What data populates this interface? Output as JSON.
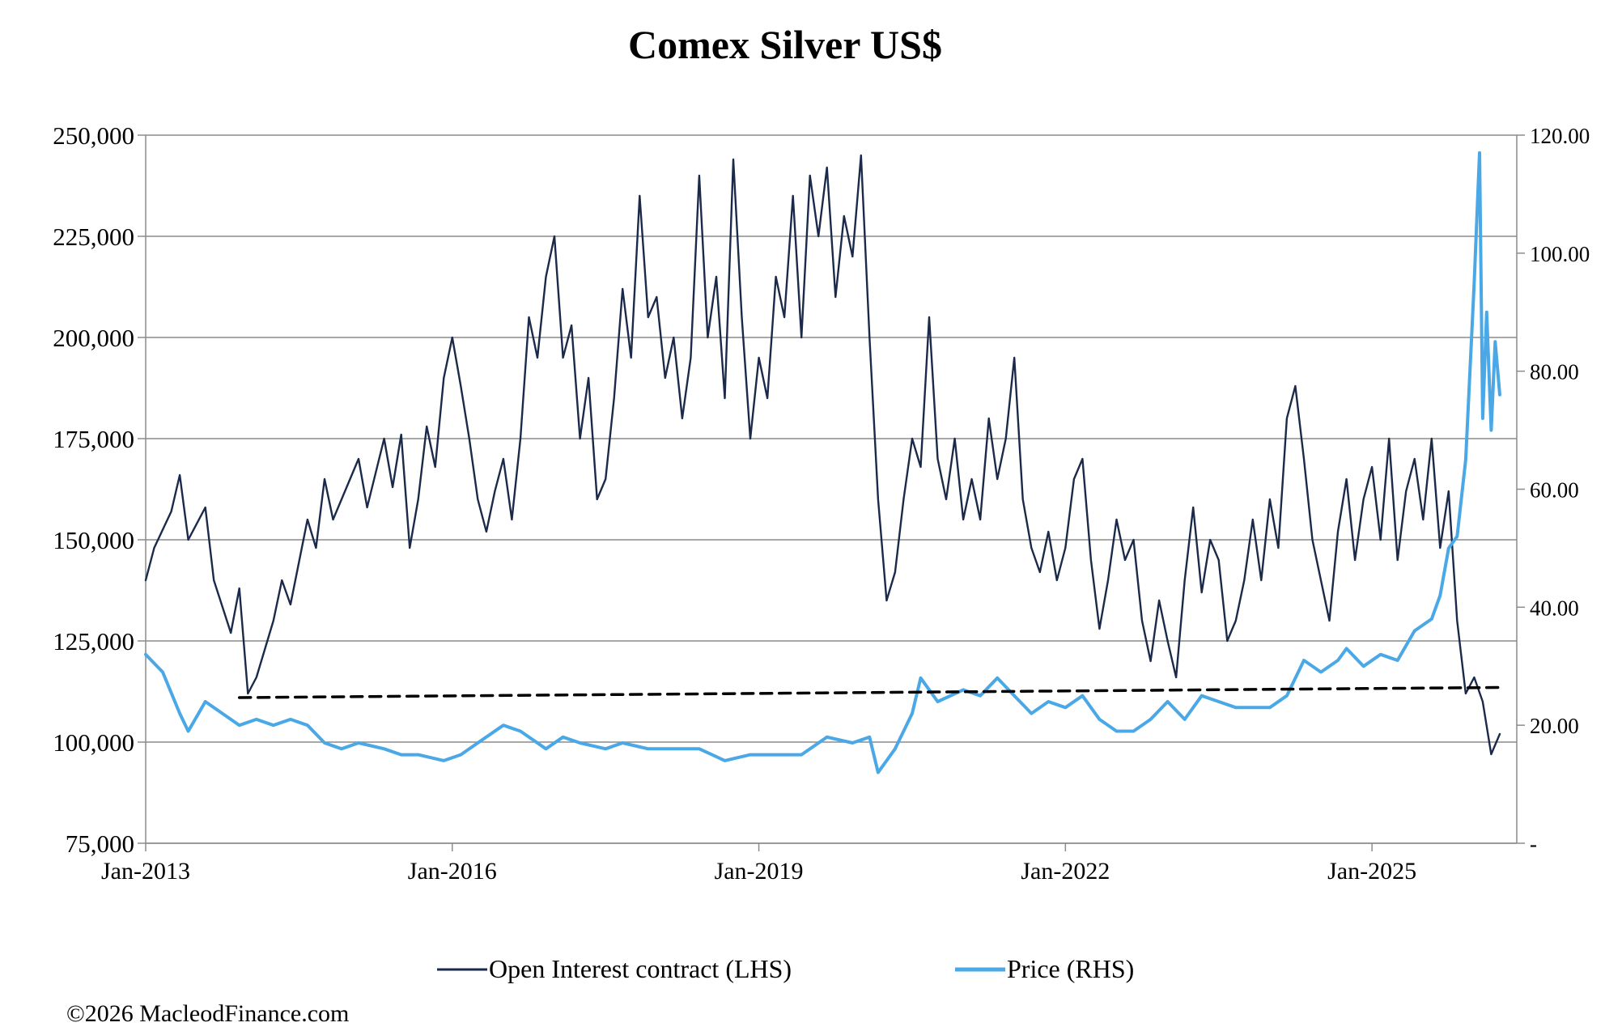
{
  "chart_data": {
    "type": "line",
    "title": "Comex Silver US$",
    "copyright": "©2026 MacleodFinance.com",
    "x_range": [
      "2013-01",
      "2026-06"
    ],
    "x_tick_labels": [
      "Jan-2013",
      "Jan-2016",
      "Jan-2019",
      "Jan-2022",
      "Jan-2025"
    ],
    "x_tick_dates": [
      "2013-01",
      "2016-01",
      "2019-01",
      "2022-01",
      "2025-01"
    ],
    "y_left": {
      "range": [
        75000,
        250000
      ],
      "ticks": [
        75000,
        100000,
        125000,
        150000,
        175000,
        200000,
        225000,
        250000
      ],
      "tick_labels": [
        "75,000",
        "100,000",
        "125,000",
        "150,000",
        "175,000",
        "200,000",
        "225,000",
        "250,000"
      ]
    },
    "y_right": {
      "range": [
        0,
        120
      ],
      "ticks": [
        0,
        20,
        40,
        60,
        80,
        100,
        120
      ],
      "tick_labels": [
        "-",
        "20.00",
        "40.00",
        "60.00",
        "80.00",
        "100.00",
        "120.00"
      ]
    },
    "grid": true,
    "legend_position": "bottom",
    "series": [
      {
        "name": "Open Interest contract (LHS)",
        "axis": "left",
        "color": "#1b2a4a",
        "points": [
          [
            "2013-01",
            140000
          ],
          [
            "2013-02",
            148000
          ],
          [
            "2013-04",
            157000
          ],
          [
            "2013-05",
            166000
          ],
          [
            "2013-06",
            150000
          ],
          [
            "2013-08",
            158000
          ],
          [
            "2013-09",
            140000
          ],
          [
            "2013-11",
            127000
          ],
          [
            "2013-12",
            138000
          ],
          [
            "2014-01",
            112000
          ],
          [
            "2014-02",
            116000
          ],
          [
            "2014-04",
            130000
          ],
          [
            "2014-05",
            140000
          ],
          [
            "2014-06",
            134000
          ],
          [
            "2014-08",
            155000
          ],
          [
            "2014-09",
            148000
          ],
          [
            "2014-10",
            165000
          ],
          [
            "2014-11",
            155000
          ],
          [
            "2015-01",
            165000
          ],
          [
            "2015-02",
            170000
          ],
          [
            "2015-03",
            158000
          ],
          [
            "2015-05",
            175000
          ],
          [
            "2015-06",
            163000
          ],
          [
            "2015-07",
            176000
          ],
          [
            "2015-08",
            148000
          ],
          [
            "2015-09",
            160000
          ],
          [
            "2015-10",
            178000
          ],
          [
            "2015-11",
            168000
          ],
          [
            "2015-12",
            190000
          ],
          [
            "2016-01",
            200000
          ],
          [
            "2016-02",
            188000
          ],
          [
            "2016-03",
            175000
          ],
          [
            "2016-04",
            160000
          ],
          [
            "2016-05",
            152000
          ],
          [
            "2016-06",
            162000
          ],
          [
            "2016-07",
            170000
          ],
          [
            "2016-08",
            155000
          ],
          [
            "2016-09",
            175000
          ],
          [
            "2016-10",
            205000
          ],
          [
            "2016-11",
            195000
          ],
          [
            "2016-12",
            215000
          ],
          [
            "2017-01",
            225000
          ],
          [
            "2017-02",
            195000
          ],
          [
            "2017-03",
            203000
          ],
          [
            "2017-04",
            175000
          ],
          [
            "2017-05",
            190000
          ],
          [
            "2017-06",
            160000
          ],
          [
            "2017-07",
            165000
          ],
          [
            "2017-08",
            185000
          ],
          [
            "2017-09",
            212000
          ],
          [
            "2017-10",
            195000
          ],
          [
            "2017-11",
            235000
          ],
          [
            "2017-12",
            205000
          ],
          [
            "2018-01",
            210000
          ],
          [
            "2018-02",
            190000
          ],
          [
            "2018-03",
            200000
          ],
          [
            "2018-04",
            180000
          ],
          [
            "2018-05",
            195000
          ],
          [
            "2018-06",
            240000
          ],
          [
            "2018-07",
            200000
          ],
          [
            "2018-08",
            215000
          ],
          [
            "2018-09",
            185000
          ],
          [
            "2018-10",
            244000
          ],
          [
            "2018-11",
            205000
          ],
          [
            "2018-12",
            175000
          ],
          [
            "2019-01",
            195000
          ],
          [
            "2019-02",
            185000
          ],
          [
            "2019-03",
            215000
          ],
          [
            "2019-04",
            205000
          ],
          [
            "2019-05",
            235000
          ],
          [
            "2019-06",
            200000
          ],
          [
            "2019-07",
            240000
          ],
          [
            "2019-08",
            225000
          ],
          [
            "2019-09",
            242000
          ],
          [
            "2019-10",
            210000
          ],
          [
            "2019-11",
            230000
          ],
          [
            "2019-12",
            220000
          ],
          [
            "2020-01",
            245000
          ],
          [
            "2020-02",
            200000
          ],
          [
            "2020-03",
            160000
          ],
          [
            "2020-04",
            135000
          ],
          [
            "2020-05",
            142000
          ],
          [
            "2020-06",
            160000
          ],
          [
            "2020-07",
            175000
          ],
          [
            "2020-08",
            168000
          ],
          [
            "2020-09",
            205000
          ],
          [
            "2020-10",
            170000
          ],
          [
            "2020-11",
            160000
          ],
          [
            "2020-12",
            175000
          ],
          [
            "2021-01",
            155000
          ],
          [
            "2021-02",
            165000
          ],
          [
            "2021-03",
            155000
          ],
          [
            "2021-04",
            180000
          ],
          [
            "2021-05",
            165000
          ],
          [
            "2021-06",
            175000
          ],
          [
            "2021-07",
            195000
          ],
          [
            "2021-08",
            160000
          ],
          [
            "2021-09",
            148000
          ],
          [
            "2021-10",
            142000
          ],
          [
            "2021-11",
            152000
          ],
          [
            "2021-12",
            140000
          ],
          [
            "2022-01",
            148000
          ],
          [
            "2022-02",
            165000
          ],
          [
            "2022-03",
            170000
          ],
          [
            "2022-04",
            145000
          ],
          [
            "2022-05",
            128000
          ],
          [
            "2022-06",
            140000
          ],
          [
            "2022-07",
            155000
          ],
          [
            "2022-08",
            145000
          ],
          [
            "2022-09",
            150000
          ],
          [
            "2022-10",
            130000
          ],
          [
            "2022-11",
            120000
          ],
          [
            "2022-12",
            135000
          ],
          [
            "2023-01",
            125000
          ],
          [
            "2023-02",
            116000
          ],
          [
            "2023-03",
            140000
          ],
          [
            "2023-04",
            158000
          ],
          [
            "2023-05",
            137000
          ],
          [
            "2023-06",
            150000
          ],
          [
            "2023-07",
            145000
          ],
          [
            "2023-08",
            125000
          ],
          [
            "2023-09",
            130000
          ],
          [
            "2023-10",
            140000
          ],
          [
            "2023-11",
            155000
          ],
          [
            "2023-12",
            140000
          ],
          [
            "2024-01",
            160000
          ],
          [
            "2024-02",
            148000
          ],
          [
            "2024-03",
            180000
          ],
          [
            "2024-04",
            188000
          ],
          [
            "2024-05",
            170000
          ],
          [
            "2024-06",
            150000
          ],
          [
            "2024-07",
            140000
          ],
          [
            "2024-08",
            130000
          ],
          [
            "2024-09",
            152000
          ],
          [
            "2024-10",
            165000
          ],
          [
            "2024-11",
            145000
          ],
          [
            "2024-12",
            160000
          ],
          [
            "2025-01",
            168000
          ],
          [
            "2025-02",
            150000
          ],
          [
            "2025-03",
            175000
          ],
          [
            "2025-04",
            145000
          ],
          [
            "2025-05",
            162000
          ],
          [
            "2025-06",
            170000
          ],
          [
            "2025-07",
            155000
          ],
          [
            "2025-08",
            175000
          ],
          [
            "2025-09",
            148000
          ],
          [
            "2025-10",
            162000
          ],
          [
            "2025-11",
            130000
          ],
          [
            "2025-12",
            112000
          ],
          [
            "2026-01",
            116000
          ],
          [
            "2026-02",
            110000
          ],
          [
            "2026-03",
            97000
          ],
          [
            "2026-04",
            102000
          ]
        ]
      },
      {
        "name": "Price (RHS)",
        "axis": "right",
        "color": "#4aa8e6",
        "points": [
          [
            "2013-01",
            32
          ],
          [
            "2013-03",
            29
          ],
          [
            "2013-05",
            22
          ],
          [
            "2013-06",
            19
          ],
          [
            "2013-08",
            24
          ],
          [
            "2013-10",
            22
          ],
          [
            "2013-12",
            20
          ],
          [
            "2014-02",
            21
          ],
          [
            "2014-04",
            20
          ],
          [
            "2014-06",
            21
          ],
          [
            "2014-08",
            20
          ],
          [
            "2014-10",
            17
          ],
          [
            "2014-12",
            16
          ],
          [
            "2015-02",
            17
          ],
          [
            "2015-05",
            16
          ],
          [
            "2015-07",
            15
          ],
          [
            "2015-09",
            15
          ],
          [
            "2015-12",
            14
          ],
          [
            "2016-02",
            15
          ],
          [
            "2016-04",
            17
          ],
          [
            "2016-07",
            20
          ],
          [
            "2016-09",
            19
          ],
          [
            "2016-12",
            16
          ],
          [
            "2017-02",
            18
          ],
          [
            "2017-04",
            17
          ],
          [
            "2017-07",
            16
          ],
          [
            "2017-09",
            17
          ],
          [
            "2017-12",
            16
          ],
          [
            "2018-03",
            16
          ],
          [
            "2018-06",
            16
          ],
          [
            "2018-09",
            14
          ],
          [
            "2018-12",
            15
          ],
          [
            "2019-03",
            15
          ],
          [
            "2019-06",
            15
          ],
          [
            "2019-09",
            18
          ],
          [
            "2019-12",
            17
          ],
          [
            "2020-02",
            18
          ],
          [
            "2020-03",
            12
          ],
          [
            "2020-05",
            16
          ],
          [
            "2020-07",
            22
          ],
          [
            "2020-08",
            28
          ],
          [
            "2020-10",
            24
          ],
          [
            "2021-01",
            26
          ],
          [
            "2021-03",
            25
          ],
          [
            "2021-05",
            28
          ],
          [
            "2021-07",
            25
          ],
          [
            "2021-09",
            22
          ],
          [
            "2021-11",
            24
          ],
          [
            "2022-01",
            23
          ],
          [
            "2022-03",
            25
          ],
          [
            "2022-05",
            21
          ],
          [
            "2022-07",
            19
          ],
          [
            "2022-09",
            19
          ],
          [
            "2022-11",
            21
          ],
          [
            "2023-01",
            24
          ],
          [
            "2023-03",
            21
          ],
          [
            "2023-05",
            25
          ],
          [
            "2023-07",
            24
          ],
          [
            "2023-09",
            23
          ],
          [
            "2023-11",
            23
          ],
          [
            "2024-01",
            23
          ],
          [
            "2024-03",
            25
          ],
          [
            "2024-05",
            31
          ],
          [
            "2024-07",
            29
          ],
          [
            "2024-09",
            31
          ],
          [
            "2024-10",
            33
          ],
          [
            "2024-12",
            30
          ],
          [
            "2025-02",
            32
          ],
          [
            "2025-04",
            31
          ],
          [
            "2025-06",
            36
          ],
          [
            "2025-08",
            38
          ],
          [
            "2025-09",
            42
          ],
          [
            "2025-10",
            50
          ],
          [
            "2025-11",
            52
          ],
          [
            "2025-12",
            65
          ],
          [
            "2026-01",
            95
          ],
          [
            "2026-01-20",
            117
          ],
          [
            "2026-02",
            72
          ],
          [
            "2026-02-15",
            90
          ],
          [
            "2026-03",
            70
          ],
          [
            "2026-03-15",
            85
          ],
          [
            "2026-04",
            76
          ]
        ]
      },
      {
        "name": "",
        "axis": "left",
        "style": "dashed",
        "color": "#000000",
        "points": [
          [
            "2013-12",
            111000
          ],
          [
            "2026-04",
            113500
          ]
        ]
      }
    ]
  }
}
